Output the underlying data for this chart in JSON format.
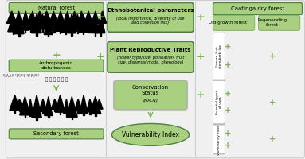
{
  "bg_color": "#f0f0f0",
  "light_green": "#a8d080",
  "mid_green": "#78b050",
  "dark_green_edge": "#508040",
  "white": "#ffffff",
  "gray_edge": "#999999",
  "light_gray": "#cccccc",
  "plus_color": "#78b050",
  "arrow_color": "#78b050",
  "text_dark": "#222222",
  "left_label1": "Natural forest",
  "left_label2": "Anthropogenic\ndisturbances",
  "left_label3": "Secondary forest",
  "mid_box1_title": "Ethnobotanical parameters",
  "mid_box1_sub": "(local importance, diversity of use\nand collection risk)",
  "mid_box2_title": "Plant Reproductive Traits",
  "mid_box2_sub": "(flower type/size, pollination, fruit\nsize, dispersal mode, phenology)",
  "mid_box3_title": "Conservation\nStatus",
  "mid_box3_sub": "(IUCN)",
  "mid_ellipse": "Vulnerability Index",
  "right_header": "Caatinga dry forest",
  "right_col1": "Old-growth forest",
  "right_col2": "Regenerating\nforest",
  "row1_label": "Flowers, fruit,\nstem/bark, leaf",
  "row2_label": "Potential types\nof uses",
  "row3_label": "Vulnerability index"
}
